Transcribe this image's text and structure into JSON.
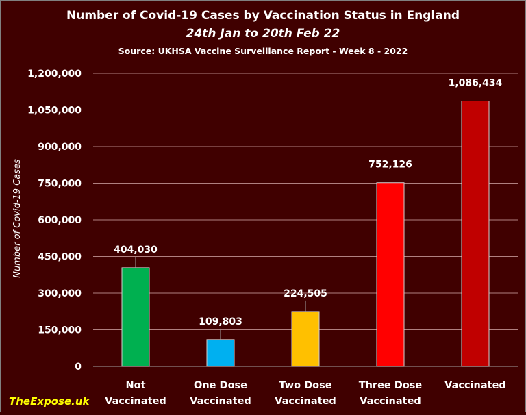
{
  "chart_data": {
    "type": "bar",
    "title": "Number of Covid-19 Cases by Vaccination Status in England",
    "subtitle": "24th Jan to 20th Feb 22",
    "source": "Source: UKHSA Vaccine Surveillance Report - Week 8 - 2022",
    "xlabel": "",
    "ylabel": "Number of Covid-19 Cases",
    "ylim": [
      0,
      1200000
    ],
    "yticks": [
      0,
      150000,
      300000,
      450000,
      600000,
      750000,
      900000,
      1050000,
      1200000
    ],
    "ytick_labels": [
      "0",
      "150,000",
      "300,000",
      "450,000",
      "600,000",
      "750,000",
      "900,000",
      "1,050,000",
      "1,200,000"
    ],
    "grid": true,
    "categories": [
      [
        "Not",
        "Vaccinated"
      ],
      [
        "One Dose",
        "Vaccinated"
      ],
      [
        "Two Dose",
        "Vaccinated"
      ],
      [
        "Three Dose",
        "Vaccinated"
      ],
      [
        "Vaccinated"
      ]
    ],
    "values": [
      404030,
      109803,
      224505,
      752126,
      1086434
    ],
    "data_labels": [
      "404,030",
      "109,803",
      "224,505",
      "752,126",
      "1,086,434"
    ],
    "colors": [
      "#00b050",
      "#00b0f0",
      "#ffc000",
      "#ff0000",
      "#c00000"
    ],
    "background": "#400000"
  },
  "watermark": "TheExpose.uk"
}
